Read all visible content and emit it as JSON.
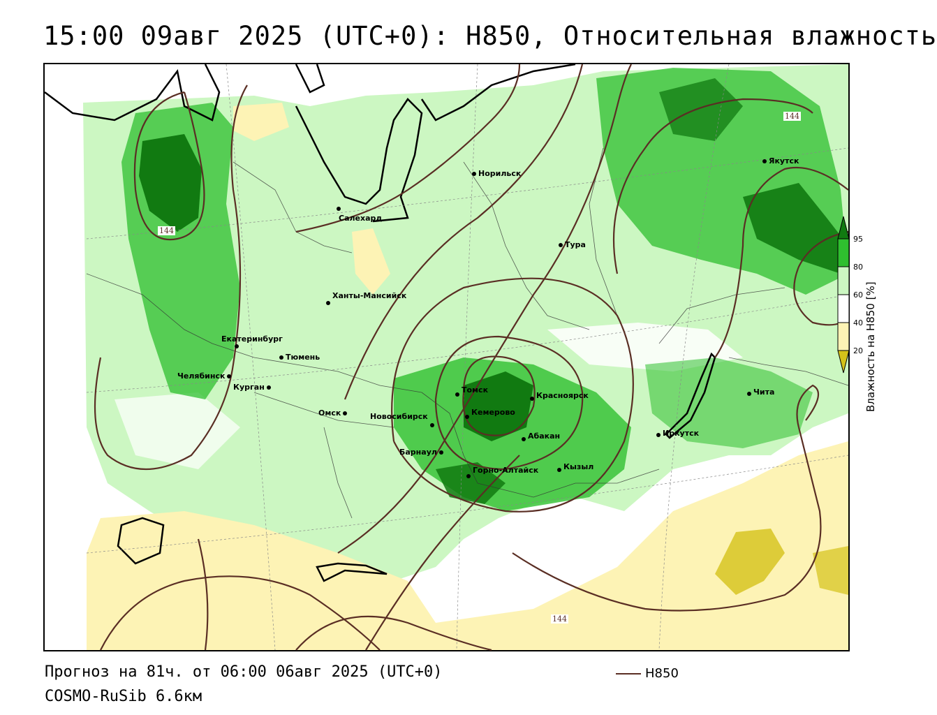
{
  "title": "15:00 09авг 2025 (UTC+0): H850, Относительная влажность",
  "colors": {
    "humidity_95": "#117a11",
    "humidity_80": "#2fbf2f",
    "humidity_60": "#ccf7c2",
    "humidity_40": "#ffffff",
    "humidity_20": "#fdf3b5",
    "humidity_low": "#d4c21a",
    "contour": "#5a2e24",
    "border": "#000000"
  },
  "cities": [
    {
      "name": "Норильск"
    },
    {
      "name": "Салехард"
    },
    {
      "name": "Тура"
    },
    {
      "name": "Якутск"
    },
    {
      "name": "Ханты-Мансийск"
    },
    {
      "name": "Екатеринбург"
    },
    {
      "name": "Тюмень"
    },
    {
      "name": "Челябинск"
    },
    {
      "name": "Курган"
    },
    {
      "name": "Омск"
    },
    {
      "name": "Новосибирск"
    },
    {
      "name": "Томск"
    },
    {
      "name": "Кемерово"
    },
    {
      "name": "Красноярск"
    },
    {
      "name": "Абакан"
    },
    {
      "name": "Барнаул"
    },
    {
      "name": "Горно-Алтайск"
    },
    {
      "name": "Кызыл"
    },
    {
      "name": "Иркутск"
    },
    {
      "name": "Чита"
    }
  ],
  "contour_labels": [
    "144",
    "144",
    "144"
  ],
  "legend": {
    "title": "Влажность на H850 [%]",
    "ticks": [
      "95",
      "80",
      "60",
      "40",
      "20"
    ]
  },
  "footer": {
    "forecast": "Прогноз на 81ч. от 06:00 06авг 2025 (UTC+0)",
    "model": "COSMO-RuSib 6.6км",
    "line_legend": "H850"
  }
}
